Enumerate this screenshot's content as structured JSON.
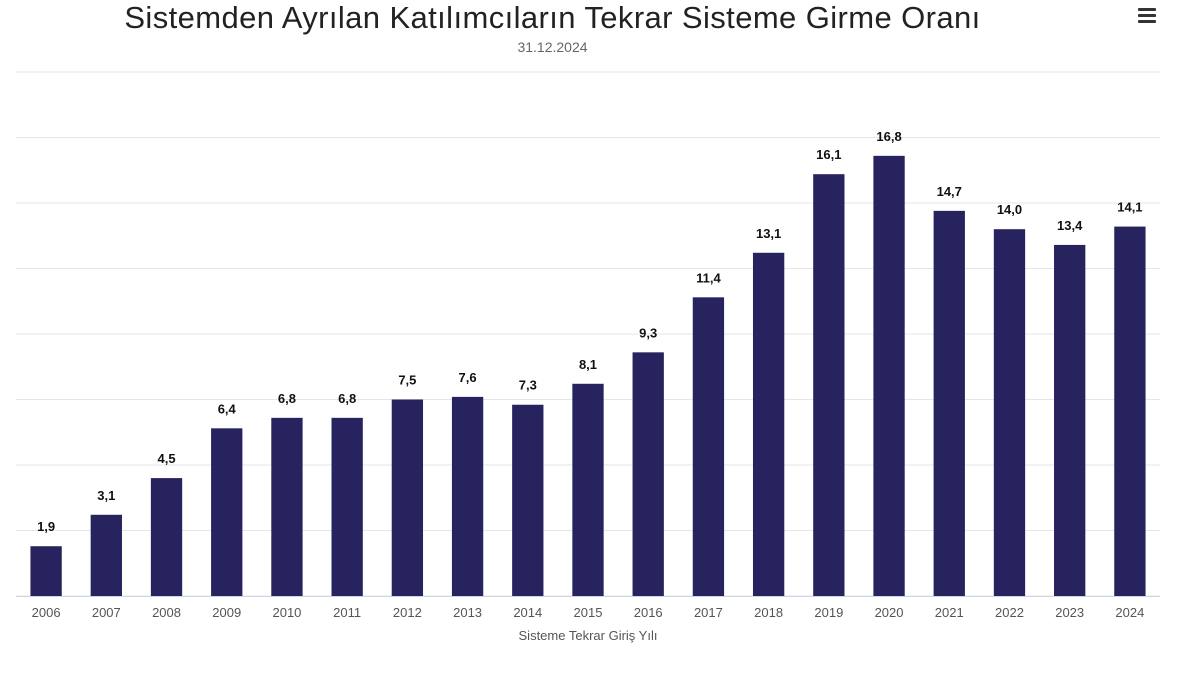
{
  "title": "Sistemden Ayrılan Katılımcıların Tekrar Sisteme Girme Oranı",
  "subtitle": "31.12.2024",
  "menu_icon": "hamburger-menu-icon",
  "colors": {
    "bar": "#27235e",
    "grid": "#e6e6e6",
    "axis_line": "#ccd6eb"
  },
  "chart_data": {
    "type": "bar",
    "title": "Sistemden Ayrılan Katılımcıların Tekrar Sisteme Girme Oranı",
    "subtitle": "31.12.2024",
    "xlabel": "Sisteme Tekrar Giriş Yılı",
    "ylabel": "",
    "categories": [
      "2006",
      "2007",
      "2008",
      "2009",
      "2010",
      "2011",
      "2012",
      "2013",
      "2014",
      "2015",
      "2016",
      "2017",
      "2018",
      "2019",
      "2020",
      "2021",
      "2022",
      "2023",
      "2024"
    ],
    "values": [
      1.9,
      3.1,
      4.5,
      6.4,
      6.8,
      6.8,
      7.5,
      7.6,
      7.3,
      8.1,
      9.3,
      11.4,
      13.1,
      16.1,
      16.8,
      14.7,
      14.0,
      13.4,
      14.1
    ],
    "value_labels": [
      "1,9",
      "3,1",
      "4,5",
      "6,4",
      "6,8",
      "6,8",
      "7,5",
      "7,6",
      "7,3",
      "8,1",
      "9,3",
      "11,4",
      "13,1",
      "16,1",
      "16,8",
      "14,7",
      "14,0",
      "13,4",
      "14,1"
    ],
    "ylim": [
      0,
      20
    ],
    "grid": true,
    "legend": "none"
  }
}
